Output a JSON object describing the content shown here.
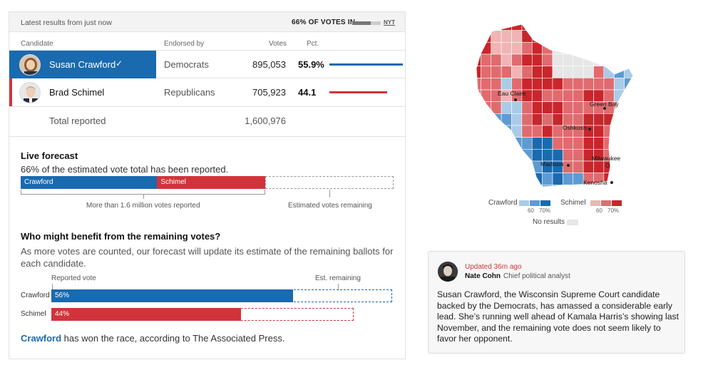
{
  "header": {
    "latest": "Latest results from just now",
    "pct_in": "66% OF VOTES IN",
    "pct_in_value": 0.66,
    "source": "NYT"
  },
  "columns": {
    "candidate": "Candidate",
    "endorsed": "Endorsed by",
    "votes": "Votes",
    "pct": "Pct."
  },
  "candidates": [
    {
      "name": "Susan Crawford",
      "endorsed": "Democrats",
      "votes": "895,053",
      "pct": "55.9%",
      "pct_value": 55.9,
      "color": "#1a6aaf",
      "winner": true,
      "winner_mark": "✓"
    },
    {
      "name": "Brad Schimel",
      "endorsed": "Republicans",
      "votes": "705,923",
      "pct": "44.1",
      "pct_value": 44.1,
      "color": "#d0343a",
      "winner": false
    }
  ],
  "total": {
    "label": "Total reported",
    "votes": "1,600,976"
  },
  "live_forecast": {
    "title": "Live forecast",
    "subtitle": "66% of the estimated vote total has been reported.",
    "crawford_label": "Crawford",
    "schimel_label": "Schimel",
    "crawford_share": 0.366,
    "schimel_share": 0.289,
    "reported_caption": "More than 1.6 million votes reported",
    "remaining_caption": "Estimated votes remaining"
  },
  "benefit": {
    "title": "Who might benefit from the remaining votes?",
    "description": "As more votes are counted, our forecast will update its estimate of the remaining ballots for each candidate.",
    "reported_label": "Reported vote",
    "remaining_label": "Est. remaining",
    "rows": [
      {
        "name": "Crawford",
        "pct": "56%",
        "reported": 0.56,
        "total": 0.79,
        "color": "#1a6aaf"
      },
      {
        "name": "Schimel",
        "pct": "44%",
        "reported": 0.44,
        "total": 0.7,
        "color": "#d0343a"
      }
    ]
  },
  "result": {
    "winner": "Crawford",
    "text": " has won the race, according to The Associated Press."
  },
  "map": {
    "cities": [
      "Eau Claire",
      "Green Bay",
      "Oshkosh",
      "Madison",
      "Milwaukee",
      "Kenosha"
    ],
    "legend": {
      "crawford": "Crawford",
      "schimel": "Schimel",
      "tick_60": "60",
      "tick_70": "70%",
      "no_results": "No results",
      "blue_shades": [
        "#a9cbe8",
        "#5d9bd3",
        "#1a6aaf"
      ],
      "red_shades": [
        "#f0b4b4",
        "#e06b6e",
        "#c8262b"
      ],
      "no_results_color": "#e6e6e6"
    }
  },
  "card": {
    "updated": "Updated 36m ago",
    "author": "Nate Cohn",
    "role": "Chief political analyst",
    "body": "Susan Crawford, the Wisconsin Supreme Court candidate backed by the Democrats, has amassed a considerable early lead. She’s running well ahead of Kamala Harris’s showing last November, and the remaining vote does not seem likely to favor her opponent."
  }
}
